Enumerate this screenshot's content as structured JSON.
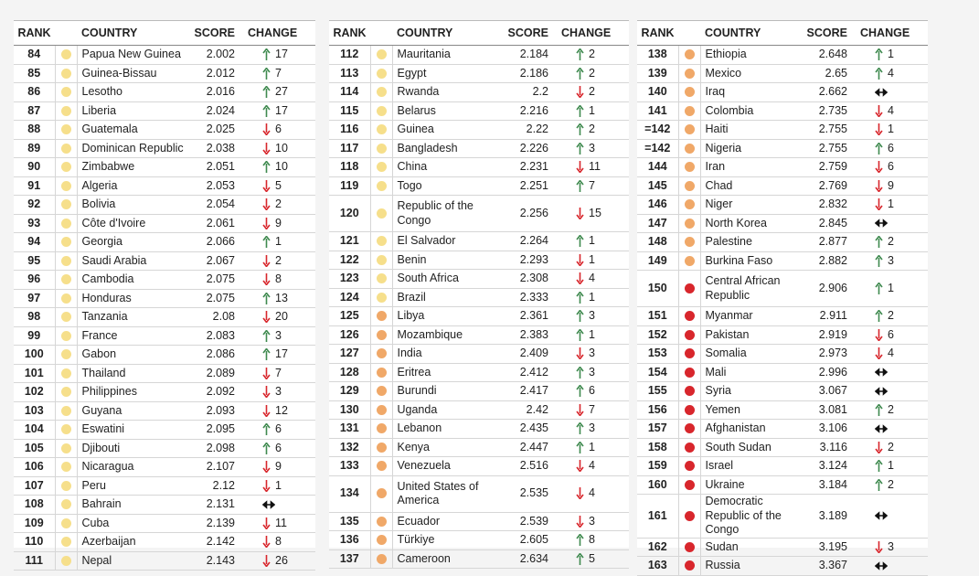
{
  "tables": [
    {
      "columns": [
        "RANK",
        "COUNTRY",
        "SCORE",
        "CHANGE"
      ],
      "rows": [
        {
          "rank": 84,
          "dot": "#f6df8b",
          "country": "Papua New Guinea",
          "score": 2.002,
          "direction": "up",
          "change": 17
        },
        {
          "rank": 85,
          "dot": "#f6df8b",
          "country": "Guinea-Bissau",
          "score": 2.012,
          "direction": "up",
          "change": 7
        },
        {
          "rank": 86,
          "dot": "#f6df8b",
          "country": "Lesotho",
          "score": 2.016,
          "direction": "up",
          "change": 27
        },
        {
          "rank": 87,
          "dot": "#f6df8b",
          "country": "Liberia",
          "score": 2.024,
          "direction": "up",
          "change": 17
        },
        {
          "rank": 88,
          "dot": "#f6df8b",
          "country": "Guatemala",
          "score": 2.025,
          "direction": "down",
          "change": 6
        },
        {
          "rank": 89,
          "dot": "#f6df8b",
          "country": "Dominican Republic",
          "score": 2.038,
          "direction": "down",
          "change": 10
        },
        {
          "rank": 90,
          "dot": "#f6df8b",
          "country": "Zimbabwe",
          "score": 2.051,
          "direction": "up",
          "change": 10
        },
        {
          "rank": 91,
          "dot": "#f6df8b",
          "country": "Algeria",
          "score": 2.053,
          "direction": "down",
          "change": 5
        },
        {
          "rank": 92,
          "dot": "#f6df8b",
          "country": "Bolivia",
          "score": 2.054,
          "direction": "down",
          "change": 2
        },
        {
          "rank": 93,
          "dot": "#f6df8b",
          "country": "Côte d'Ivoire",
          "score": 2.061,
          "direction": "down",
          "change": 9
        },
        {
          "rank": 94,
          "dot": "#f6df8b",
          "country": "Georgia",
          "score": 2.066,
          "direction": "up",
          "change": 1
        },
        {
          "rank": 95,
          "dot": "#f6df8b",
          "country": "Saudi Arabia",
          "score": 2.067,
          "direction": "down",
          "change": 2
        },
        {
          "rank": 96,
          "dot": "#f6df8b",
          "country": "Cambodia",
          "score": 2.075,
          "direction": "down",
          "change": 8
        },
        {
          "rank": 97,
          "dot": "#f6df8b",
          "country": "Honduras",
          "score": 2.075,
          "direction": "up",
          "change": 13
        },
        {
          "rank": 98,
          "dot": "#f6df8b",
          "country": "Tanzania",
          "score": 2.08,
          "direction": "down",
          "change": 20
        },
        {
          "rank": 99,
          "dot": "#f6df8b",
          "country": "France",
          "score": 2.083,
          "direction": "up",
          "change": 3
        },
        {
          "rank": 100,
          "dot": "#f6df8b",
          "country": "Gabon",
          "score": 2.086,
          "direction": "up",
          "change": 17
        },
        {
          "rank": 101,
          "dot": "#f6df8b",
          "country": "Thailand",
          "score": 2.089,
          "direction": "down",
          "change": 7
        },
        {
          "rank": 102,
          "dot": "#f6df8b",
          "country": "Philippines",
          "score": 2.092,
          "direction": "down",
          "change": 3
        },
        {
          "rank": 103,
          "dot": "#f6df8b",
          "country": "Guyana",
          "score": 2.093,
          "direction": "down",
          "change": 12
        },
        {
          "rank": 104,
          "dot": "#f6df8b",
          "country": "Eswatini",
          "score": 2.095,
          "direction": "up",
          "change": 6
        },
        {
          "rank": 105,
          "dot": "#f6df8b",
          "country": "Djibouti",
          "score": 2.098,
          "direction": "up",
          "change": 6
        },
        {
          "rank": 106,
          "dot": "#f6df8b",
          "country": "Nicaragua",
          "score": 2.107,
          "direction": "down",
          "change": 9
        },
        {
          "rank": 107,
          "dot": "#f6df8b",
          "country": "Peru",
          "score": 2.12,
          "direction": "down",
          "change": 1
        },
        {
          "rank": 108,
          "dot": "#f6df8b",
          "country": "Bahrain",
          "score": 2.131,
          "direction": "same"
        },
        {
          "rank": 109,
          "dot": "#f6df8b",
          "country": "Cuba",
          "score": 2.139,
          "direction": "down",
          "change": 11
        },
        {
          "rank": 110,
          "dot": "#f6df8b",
          "country": "Azerbaijan",
          "score": 2.142,
          "direction": "down",
          "change": 8
        },
        {
          "rank": 111,
          "dot": "#f6df8b",
          "country": "Nepal",
          "score": 2.143,
          "direction": "down",
          "change": 26
        }
      ]
    },
    {
      "columns": [
        "RANK",
        "COUNTRY",
        "SCORE",
        "CHANGE"
      ],
      "rows": [
        {
          "rank": 112,
          "dot": "#f6df8b",
          "country": "Mauritania",
          "score": 2.184,
          "direction": "up",
          "change": 2
        },
        {
          "rank": 113,
          "dot": "#f6df8b",
          "country": "Egypt",
          "score": 2.186,
          "direction": "up",
          "change": 2
        },
        {
          "rank": 114,
          "dot": "#f6df8b",
          "country": "Rwanda",
          "score": 2.2,
          "direction": "down",
          "change": 2
        },
        {
          "rank": 115,
          "dot": "#f6df8b",
          "country": "Belarus",
          "score": 2.216,
          "direction": "up",
          "change": 1
        },
        {
          "rank": 116,
          "dot": "#f6df8b",
          "country": "Guinea",
          "score": 2.22,
          "direction": "up",
          "change": 2
        },
        {
          "rank": 117,
          "dot": "#f6df8b",
          "country": "Bangladesh",
          "score": 2.226,
          "direction": "up",
          "change": 3
        },
        {
          "rank": 118,
          "dot": "#f6df8b",
          "country": "China",
          "score": 2.231,
          "direction": "down",
          "change": 11
        },
        {
          "rank": 119,
          "dot": "#f6df8b",
          "country": "Togo",
          "score": 2.251,
          "direction": "up",
          "change": 7
        },
        {
          "rank": 120,
          "dot": "#f6df8b",
          "country": "Republic of the Congo",
          "score": 2.256,
          "direction": "down",
          "change": 15
        },
        {
          "rank": 121,
          "dot": "#f6df8b",
          "country": "El Salvador",
          "score": 2.264,
          "direction": "up",
          "change": 1
        },
        {
          "rank": 122,
          "dot": "#f6df8b",
          "country": "Benin",
          "score": 2.293,
          "direction": "down",
          "change": 1
        },
        {
          "rank": 123,
          "dot": "#f6df8b",
          "country": "South Africa",
          "score": 2.308,
          "direction": "down",
          "change": 4
        },
        {
          "rank": 124,
          "dot": "#f6df8b",
          "country": "Brazil",
          "score": 2.333,
          "direction": "up",
          "change": 1
        },
        {
          "rank": 125,
          "dot": "#f0a868",
          "country": "Libya",
          "score": 2.361,
          "direction": "up",
          "change": 3
        },
        {
          "rank": 126,
          "dot": "#f0a868",
          "country": "Mozambique",
          "score": 2.383,
          "direction": "up",
          "change": 1
        },
        {
          "rank": 127,
          "dot": "#f0a868",
          "country": "India",
          "score": 2.409,
          "direction": "down",
          "change": 3
        },
        {
          "rank": 128,
          "dot": "#f0a868",
          "country": "Eritrea",
          "score": 2.412,
          "direction": "up",
          "change": 3
        },
        {
          "rank": 129,
          "dot": "#f0a868",
          "country": "Burundi",
          "score": 2.417,
          "direction": "up",
          "change": 6
        },
        {
          "rank": 130,
          "dot": "#f0a868",
          "country": "Uganda",
          "score": 2.42,
          "direction": "down",
          "change": 7
        },
        {
          "rank": 131,
          "dot": "#f0a868",
          "country": "Lebanon",
          "score": 2.435,
          "direction": "up",
          "change": 3
        },
        {
          "rank": 132,
          "dot": "#f0a868",
          "country": "Kenya",
          "score": 2.447,
          "direction": "up",
          "change": 1
        },
        {
          "rank": 133,
          "dot": "#f0a868",
          "country": "Venezuela",
          "score": 2.516,
          "direction": "down",
          "change": 4
        },
        {
          "rank": 134,
          "dot": "#f0a868",
          "country": "United States of America",
          "score": 2.535,
          "direction": "down",
          "change": 4
        },
        {
          "rank": 135,
          "dot": "#f0a868",
          "country": "Ecuador",
          "score": 2.539,
          "direction": "down",
          "change": 3
        },
        {
          "rank": 136,
          "dot": "#f0a868",
          "country": "Türkiye",
          "score": 2.605,
          "direction": "up",
          "change": 8
        },
        {
          "rank": 137,
          "dot": "#f0a868",
          "country": "Cameroon",
          "score": 2.634,
          "direction": "up",
          "change": 5
        }
      ]
    },
    {
      "columns": [
        "RANK",
        "COUNTRY",
        "SCORE",
        "CHANGE"
      ],
      "rows": [
        {
          "rank": 138,
          "dot": "#f0a868",
          "country": "Ethiopia",
          "score": 2.648,
          "direction": "up",
          "change": 1
        },
        {
          "rank": 139,
          "dot": "#f0a868",
          "country": "Mexico",
          "score": 2.65,
          "direction": "up",
          "change": 4
        },
        {
          "rank": 140,
          "dot": "#f0a868",
          "country": "Iraq",
          "score": 2.662,
          "direction": "same"
        },
        {
          "rank": 141,
          "dot": "#f0a868",
          "country": "Colombia",
          "score": 2.735,
          "direction": "down",
          "change": 4
        },
        {
          "rank": "=142",
          "dot": "#f0a868",
          "country": "Haiti",
          "score": 2.755,
          "direction": "down",
          "change": 1
        },
        {
          "rank": "=142",
          "dot": "#f0a868",
          "country": "Nigeria",
          "score": 2.755,
          "direction": "up",
          "change": 6
        },
        {
          "rank": 144,
          "dot": "#f0a868",
          "country": "Iran",
          "score": 2.759,
          "direction": "down",
          "change": 6
        },
        {
          "rank": 145,
          "dot": "#f0a868",
          "country": "Chad",
          "score": 2.769,
          "direction": "down",
          "change": 9
        },
        {
          "rank": 146,
          "dot": "#f0a868",
          "country": "Niger",
          "score": 2.832,
          "direction": "down",
          "change": 1
        },
        {
          "rank": 147,
          "dot": "#f0a868",
          "country": "North Korea",
          "score": 2.845,
          "direction": "same"
        },
        {
          "rank": 148,
          "dot": "#f0a868",
          "country": "Palestine",
          "score": 2.877,
          "direction": "up",
          "change": 2
        },
        {
          "rank": 149,
          "dot": "#f0a868",
          "country": "Burkina Faso",
          "score": 2.882,
          "direction": "up",
          "change": 3
        },
        {
          "rank": 150,
          "dot": "#d8262c",
          "country": "Central African Republic",
          "score": 2.906,
          "direction": "up",
          "change": 1
        },
        {
          "rank": 151,
          "dot": "#d8262c",
          "country": "Myanmar",
          "score": 2.911,
          "direction": "up",
          "change": 2
        },
        {
          "rank": 152,
          "dot": "#d8262c",
          "country": "Pakistan",
          "score": 2.919,
          "direction": "down",
          "change": 6
        },
        {
          "rank": 153,
          "dot": "#d8262c",
          "country": "Somalia",
          "score": 2.973,
          "direction": "down",
          "change": 4
        },
        {
          "rank": 154,
          "dot": "#d8262c",
          "country": "Mali",
          "score": 2.996,
          "direction": "same"
        },
        {
          "rank": 155,
          "dot": "#d8262c",
          "country": "Syria",
          "score": 3.067,
          "direction": "same"
        },
        {
          "rank": 156,
          "dot": "#d8262c",
          "country": "Yemen",
          "score": 3.081,
          "direction": "up",
          "change": 2
        },
        {
          "rank": 157,
          "dot": "#d8262c",
          "country": "Afghanistan",
          "score": 3.106,
          "direction": "same"
        },
        {
          "rank": 158,
          "dot": "#d8262c",
          "country": "South Sudan",
          "score": 3.116,
          "direction": "down",
          "change": 2
        },
        {
          "rank": 159,
          "dot": "#d8262c",
          "country": "Israel",
          "score": 3.124,
          "direction": "up",
          "change": 1
        },
        {
          "rank": 160,
          "dot": "#d8262c",
          "country": "Ukraine",
          "score": 3.184,
          "direction": "up",
          "change": 2
        },
        {
          "rank": 161,
          "dot": "#d8262c",
          "country": "Democratic Republic of the Congo",
          "score": 3.189,
          "direction": "same"
        },
        {
          "rank": 162,
          "dot": "#d8262c",
          "country": "Sudan",
          "score": 3.195,
          "direction": "down",
          "change": 3
        },
        {
          "rank": 163,
          "dot": "#d8262c",
          "country": "Russia",
          "score": 3.367,
          "direction": "same"
        }
      ]
    }
  ]
}
